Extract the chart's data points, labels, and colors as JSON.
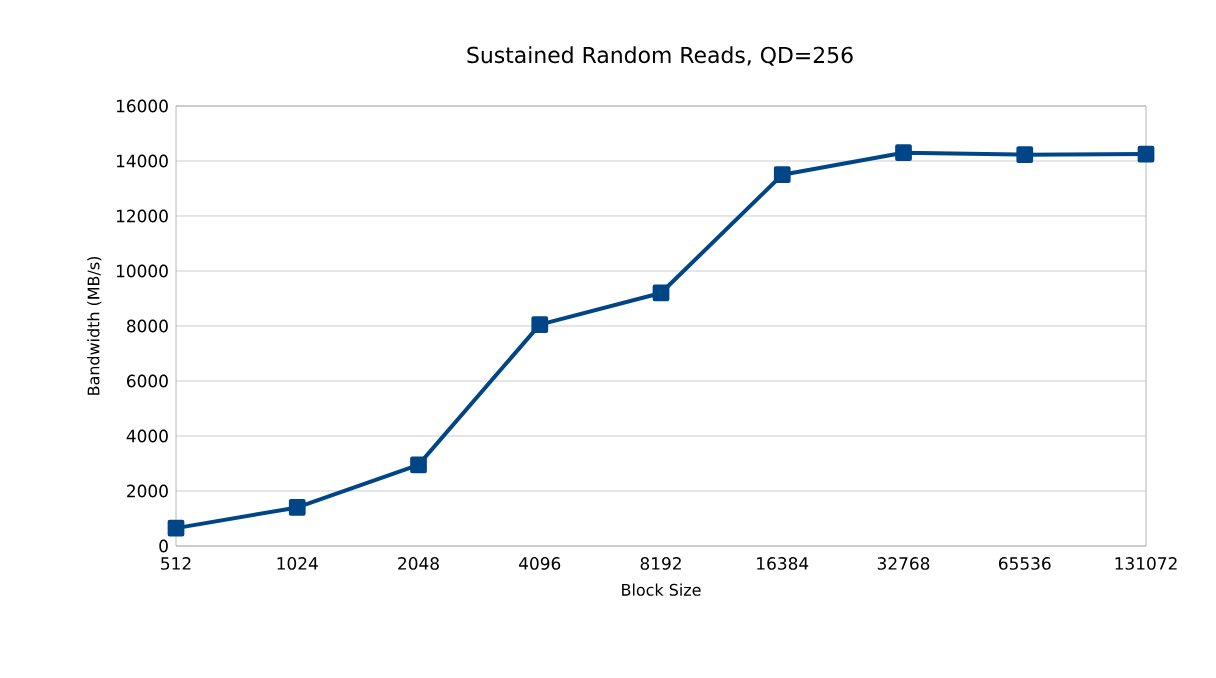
{
  "chart_data": {
    "type": "line",
    "title": "Sustained Random Reads, QD=256",
    "xlabel": "Block Size",
    "ylabel": "Bandwidth (MB/s)",
    "categories": [
      "512",
      "1024",
      "2048",
      "4096",
      "8192",
      "16384",
      "32768",
      "65536",
      "131072"
    ],
    "series": [
      {
        "color": "#004586",
        "values": [
          650,
          1400,
          2950,
          8050,
          9200,
          13500,
          14300,
          14230,
          14250
        ]
      }
    ],
    "ylim": [
      0,
      16000
    ],
    "yticks": [
      0,
      2000,
      4000,
      6000,
      8000,
      10000,
      12000,
      14000,
      16000
    ],
    "grid": "y",
    "marker": "square",
    "line_style": "solid",
    "legend": false
  }
}
